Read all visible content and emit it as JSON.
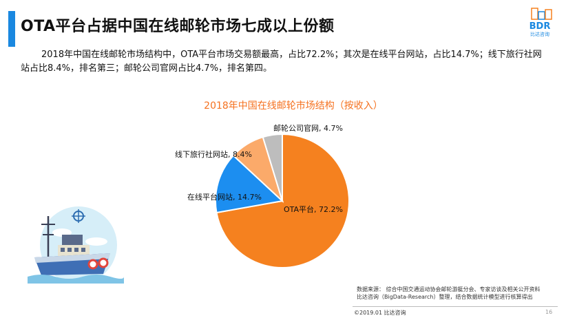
{
  "header": {
    "title": "OTA平台占据中国在线邮轮市场七成以上份额",
    "logo_text": "BDR",
    "logo_subtext": "比达咨询"
  },
  "intro_text": "2018年中国在线邮轮市场结构中，OTA平台市场交易额最高，占比72.2%；其次是在线平台网站，占比14.7%；线下旅行社网站占比8.4%，排名第三；邮轮公司官网占比4.7%，排名第四。",
  "chart_data": {
    "type": "pie",
    "title": "2018年中国在线邮轮市场结构（按收入）",
    "unit": "%",
    "slices": [
      {
        "name": "OTA平台",
        "value": 72.2,
        "label": "OTA平台, 72.2%",
        "color": "#f5811f"
      },
      {
        "name": "在线平台网站",
        "value": 14.7,
        "label": "在线平台网站, 14.7%",
        "color": "#1c8ef0"
      },
      {
        "name": "线下旅行社网站",
        "value": 8.4,
        "label": "线下旅行社网站, 8.4%",
        "color": "#fbaa6a"
      },
      {
        "name": "邮轮公司官网",
        "value": 4.7,
        "label": "邮轮公司官网, 4.7%",
        "color": "#bdbdbd"
      }
    ]
  },
  "source": {
    "line1": "数据来源：  综合中国交通运动协会邮轮游艇分会、专家访谈及相关公开资料",
    "line2": "比达咨询（BigData-Research）整理，结合数据统计模型进行核算得出"
  },
  "footer": {
    "copyright": "©2019.01  比达咨询",
    "page": "16"
  },
  "colors": {
    "accent_blue": "#1a88e0",
    "accent_orange": "#f5711f"
  }
}
